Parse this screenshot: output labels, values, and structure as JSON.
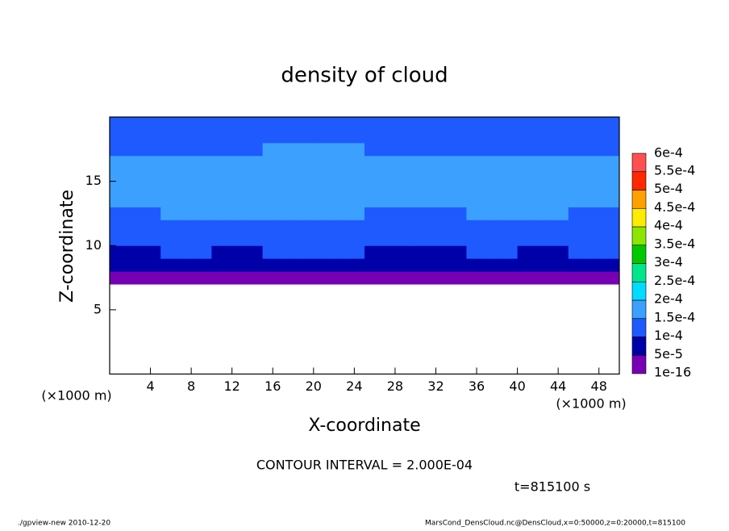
{
  "chart_data": {
    "type": "contour",
    "title": "density of cloud",
    "xlabel": "X-coordinate",
    "ylabel": "Z-coordinate",
    "xunit": "(×1000 m)",
    "yunit": "(×1000 m)",
    "contour_interval": "CONTOUR INTERVAL = 2.000E-04",
    "time_label": "t=815100 s",
    "footer_left": "./gpview-new  2010-12-20",
    "footer_right": "MarsCond_DensCloud.nc@DensCloud,x=0:50000,z=0:20000,t=815100",
    "xlim": [
      0,
      50
    ],
    "ylim": [
      0,
      20
    ],
    "xticks": [
      4,
      8,
      12,
      16,
      20,
      24,
      28,
      32,
      36,
      40,
      44,
      48
    ],
    "yticks": [
      5,
      10,
      15
    ],
    "field": {
      "x": [
        2.5,
        7.5,
        12.5,
        17.5,
        22.5,
        27.5,
        32.5,
        37.5,
        42.5,
        47.5
      ],
      "z": [
        7.5,
        8.5,
        9.5,
        10.5,
        11.5,
        12.5,
        13.5,
        14.5,
        15.5,
        16.5,
        17.5,
        18.5,
        19.5
      ],
      "values": [
        [
          3e-05,
          3e-05,
          3e-05,
          4e-05,
          3e-05,
          3e-05,
          4e-05,
          3e-05,
          3e-05,
          3e-05
        ],
        [
          7e-05,
          8e-05,
          7e-05,
          8e-05,
          8e-05,
          7e-05,
          6e-05,
          7e-05,
          8e-05,
          8e-05
        ],
        [
          9e-05,
          0.0001,
          9e-05,
          0.0001,
          0.0001,
          9e-05,
          9e-05,
          0.0001,
          9e-05,
          0.0001
        ],
        [
          0.00012,
          0.00011,
          0.00012,
          0.00012,
          0.00012,
          0.00011,
          0.00012,
          0.00012,
          0.00011,
          0.00012
        ],
        [
          0.00013,
          0.00013,
          0.00014,
          0.00014,
          0.00014,
          0.00013,
          0.00013,
          0.00014,
          0.00013,
          0.00013
        ],
        [
          0.00014,
          0.00015,
          0.00015,
          0.00016,
          0.00016,
          0.00014,
          0.00014,
          0.00015,
          0.00015,
          0.00014
        ],
        [
          0.00015,
          0.00016,
          0.00016,
          0.00017,
          0.00017,
          0.00016,
          0.00015,
          0.00016,
          0.00016,
          0.00016
        ],
        [
          0.00016,
          0.00016,
          0.00016,
          0.00017,
          0.00017,
          0.00016,
          0.00016,
          0.00016,
          0.00016,
          0.00016
        ],
        [
          0.00016,
          0.00016,
          0.00016,
          0.00017,
          0.00017,
          0.00016,
          0.00016,
          0.00016,
          0.00016,
          0.00016
        ],
        [
          0.00015,
          0.00015,
          0.00015,
          0.00016,
          0.00016,
          0.00015,
          0.00015,
          0.00015,
          0.00015,
          0.00015
        ],
        [
          0.00014,
          0.00014,
          0.00014,
          0.00015,
          0.00015,
          0.00014,
          0.00014,
          0.00014,
          0.00014,
          0.00014
        ],
        [
          0.00013,
          0.00013,
          0.00013,
          0.00013,
          0.00013,
          0.00013,
          0.00013,
          0.00013,
          0.00013,
          0.00013
        ],
        [
          0.00012,
          0.00012,
          0.00012,
          0.00012,
          0.00012,
          0.00012,
          0.00012,
          0.00012,
          0.00012,
          0.00012
        ]
      ]
    },
    "colorbar": {
      "levels": [
        {
          "value": 1e-16,
          "label": "1e-16"
        },
        {
          "value": 5e-05,
          "label": "5e-5"
        },
        {
          "value": 0.0001,
          "label": "1e-4"
        },
        {
          "value": 0.00015,
          "label": "1.5e-4"
        },
        {
          "value": 0.0002,
          "label": "2e-4"
        },
        {
          "value": 0.00025,
          "label": "2.5e-4"
        },
        {
          "value": 0.0003,
          "label": "3e-4"
        },
        {
          "value": 0.00035,
          "label": "3.5e-4"
        },
        {
          "value": 0.0004,
          "label": "4e-4"
        },
        {
          "value": 0.00045,
          "label": "4.5e-4"
        },
        {
          "value": 0.0005,
          "label": "5e-4"
        },
        {
          "value": 0.00055,
          "label": "5.5e-4"
        },
        {
          "value": 0.0006,
          "label": "6e-4"
        }
      ],
      "colors": [
        "#7800b4",
        "#0000a8",
        "#1e5aff",
        "#3ca0ff",
        "#00dcff",
        "#00e68c",
        "#00c800",
        "#8ce600",
        "#ffeb00",
        "#ffa000",
        "#ff2800",
        "#ff5050",
        "#ff9c9c"
      ]
    }
  }
}
